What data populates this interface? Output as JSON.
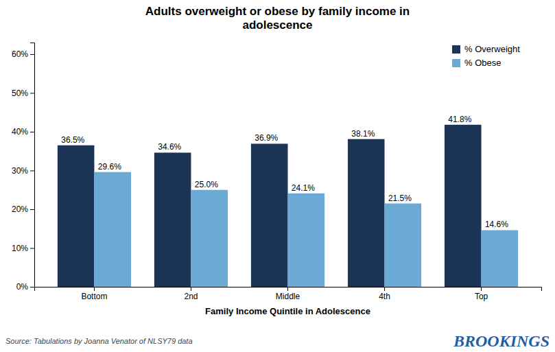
{
  "chart_data": {
    "type": "bar",
    "title": "Adults overweight or obese by family income in\nadolescence",
    "categories": [
      "Bottom",
      "2nd",
      "Middle",
      "4th",
      "Top"
    ],
    "series": [
      {
        "name": "% Overweight",
        "color": "#1c3557",
        "values": [
          36.5,
          34.6,
          36.9,
          38.1,
          41.8
        ],
        "value_labels": [
          "36.5%",
          "34.6%",
          "36.9%",
          "38.1%",
          "41.8%"
        ]
      },
      {
        "name": "% Obese",
        "color": "#6aaad4",
        "values": [
          29.6,
          25.0,
          24.1,
          21.5,
          14.6
        ],
        "value_labels": [
          "29.6%",
          "25.0%",
          "24.1%",
          "21.5%",
          "14.6%"
        ]
      }
    ],
    "xlabel": "Family Income Quintile in Adolescence",
    "ylim": [
      0,
      63
    ],
    "yticks": [
      {
        "value": 0,
        "label": "0%"
      },
      {
        "value": 10,
        "label": "10%"
      },
      {
        "value": 20,
        "label": "20%"
      },
      {
        "value": 30,
        "label": "30%"
      },
      {
        "value": 40,
        "label": "40%"
      },
      {
        "value": 50,
        "label": "50%"
      },
      {
        "value": 60,
        "label": "60%"
      }
    ],
    "grid": false,
    "legend": "upper right",
    "data_labels": true,
    "annotations": [
      {
        "text": "Source: Tabulations by Joanna Venator of NLSY79 data",
        "color": "#444444"
      },
      {
        "text": "BROOKINGS",
        "color": "#1f5fa6"
      }
    ]
  }
}
